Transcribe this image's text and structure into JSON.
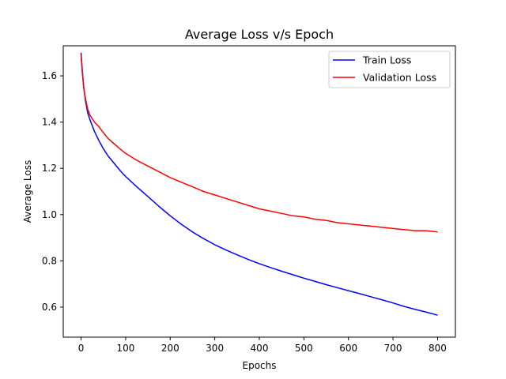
{
  "chart_data": {
    "type": "line",
    "title": "Average Loss v/s Epoch",
    "xlabel": "Epochs",
    "ylabel": "Average Loss",
    "xlim": [
      -40,
      840
    ],
    "ylim": [
      0.47,
      1.73
    ],
    "xticks": [
      0,
      100,
      200,
      300,
      400,
      500,
      600,
      700,
      800
    ],
    "yticks": [
      0.6,
      0.8,
      1.0,
      1.2,
      1.4,
      1.6
    ],
    "ytick_labels": [
      "0.6",
      "0.8",
      "1.0",
      "1.2",
      "1.4",
      "1.6"
    ],
    "grid": false,
    "legend_position": "top-right",
    "series": [
      {
        "name": "Train Loss",
        "color": "#0000ff",
        "points": [
          [
            0,
            1.7
          ],
          [
            3,
            1.62
          ],
          [
            6,
            1.55
          ],
          [
            10,
            1.49
          ],
          [
            15,
            1.44
          ],
          [
            20,
            1.41
          ],
          [
            30,
            1.36
          ],
          [
            40,
            1.32
          ],
          [
            50,
            1.285
          ],
          [
            60,
            1.255
          ],
          [
            75,
            1.22
          ],
          [
            90,
            1.185
          ],
          [
            100,
            1.165
          ],
          [
            125,
            1.12
          ],
          [
            150,
            1.078
          ],
          [
            175,
            1.035
          ],
          [
            200,
            0.995
          ],
          [
            225,
            0.958
          ],
          [
            250,
            0.925
          ],
          [
            275,
            0.896
          ],
          [
            300,
            0.87
          ],
          [
            325,
            0.847
          ],
          [
            350,
            0.826
          ],
          [
            375,
            0.806
          ],
          [
            400,
            0.788
          ],
          [
            425,
            0.771
          ],
          [
            450,
            0.755
          ],
          [
            475,
            0.74
          ],
          [
            500,
            0.725
          ],
          [
            525,
            0.711
          ],
          [
            550,
            0.697
          ],
          [
            575,
            0.684
          ],
          [
            600,
            0.671
          ],
          [
            625,
            0.658
          ],
          [
            650,
            0.645
          ],
          [
            675,
            0.632
          ],
          [
            700,
            0.618
          ],
          [
            725,
            0.603
          ],
          [
            750,
            0.59
          ],
          [
            775,
            0.578
          ],
          [
            800,
            0.565
          ]
        ]
      },
      {
        "name": "Validation Loss",
        "color": "#ff0000",
        "points": [
          [
            0,
            1.69
          ],
          [
            3,
            1.61
          ],
          [
            6,
            1.55
          ],
          [
            10,
            1.5
          ],
          [
            15,
            1.455
          ],
          [
            20,
            1.43
          ],
          [
            30,
            1.4
          ],
          [
            40,
            1.38
          ],
          [
            50,
            1.355
          ],
          [
            60,
            1.33
          ],
          [
            75,
            1.305
          ],
          [
            90,
            1.28
          ],
          [
            100,
            1.265
          ],
          [
            125,
            1.235
          ],
          [
            150,
            1.21
          ],
          [
            175,
            1.185
          ],
          [
            200,
            1.16
          ],
          [
            225,
            1.14
          ],
          [
            250,
            1.12
          ],
          [
            275,
            1.1
          ],
          [
            300,
            1.085
          ],
          [
            325,
            1.07
          ],
          [
            350,
            1.055
          ],
          [
            375,
            1.04
          ],
          [
            400,
            1.025
          ],
          [
            425,
            1.015
          ],
          [
            450,
            1.005
          ],
          [
            475,
            0.995
          ],
          [
            500,
            0.99
          ],
          [
            525,
            0.98
          ],
          [
            550,
            0.975
          ],
          [
            575,
            0.965
          ],
          [
            600,
            0.96
          ],
          [
            625,
            0.955
          ],
          [
            650,
            0.95
          ],
          [
            675,
            0.945
          ],
          [
            700,
            0.94
          ],
          [
            725,
            0.935
          ],
          [
            750,
            0.93
          ],
          [
            775,
            0.93
          ],
          [
            800,
            0.925
          ]
        ]
      }
    ]
  }
}
